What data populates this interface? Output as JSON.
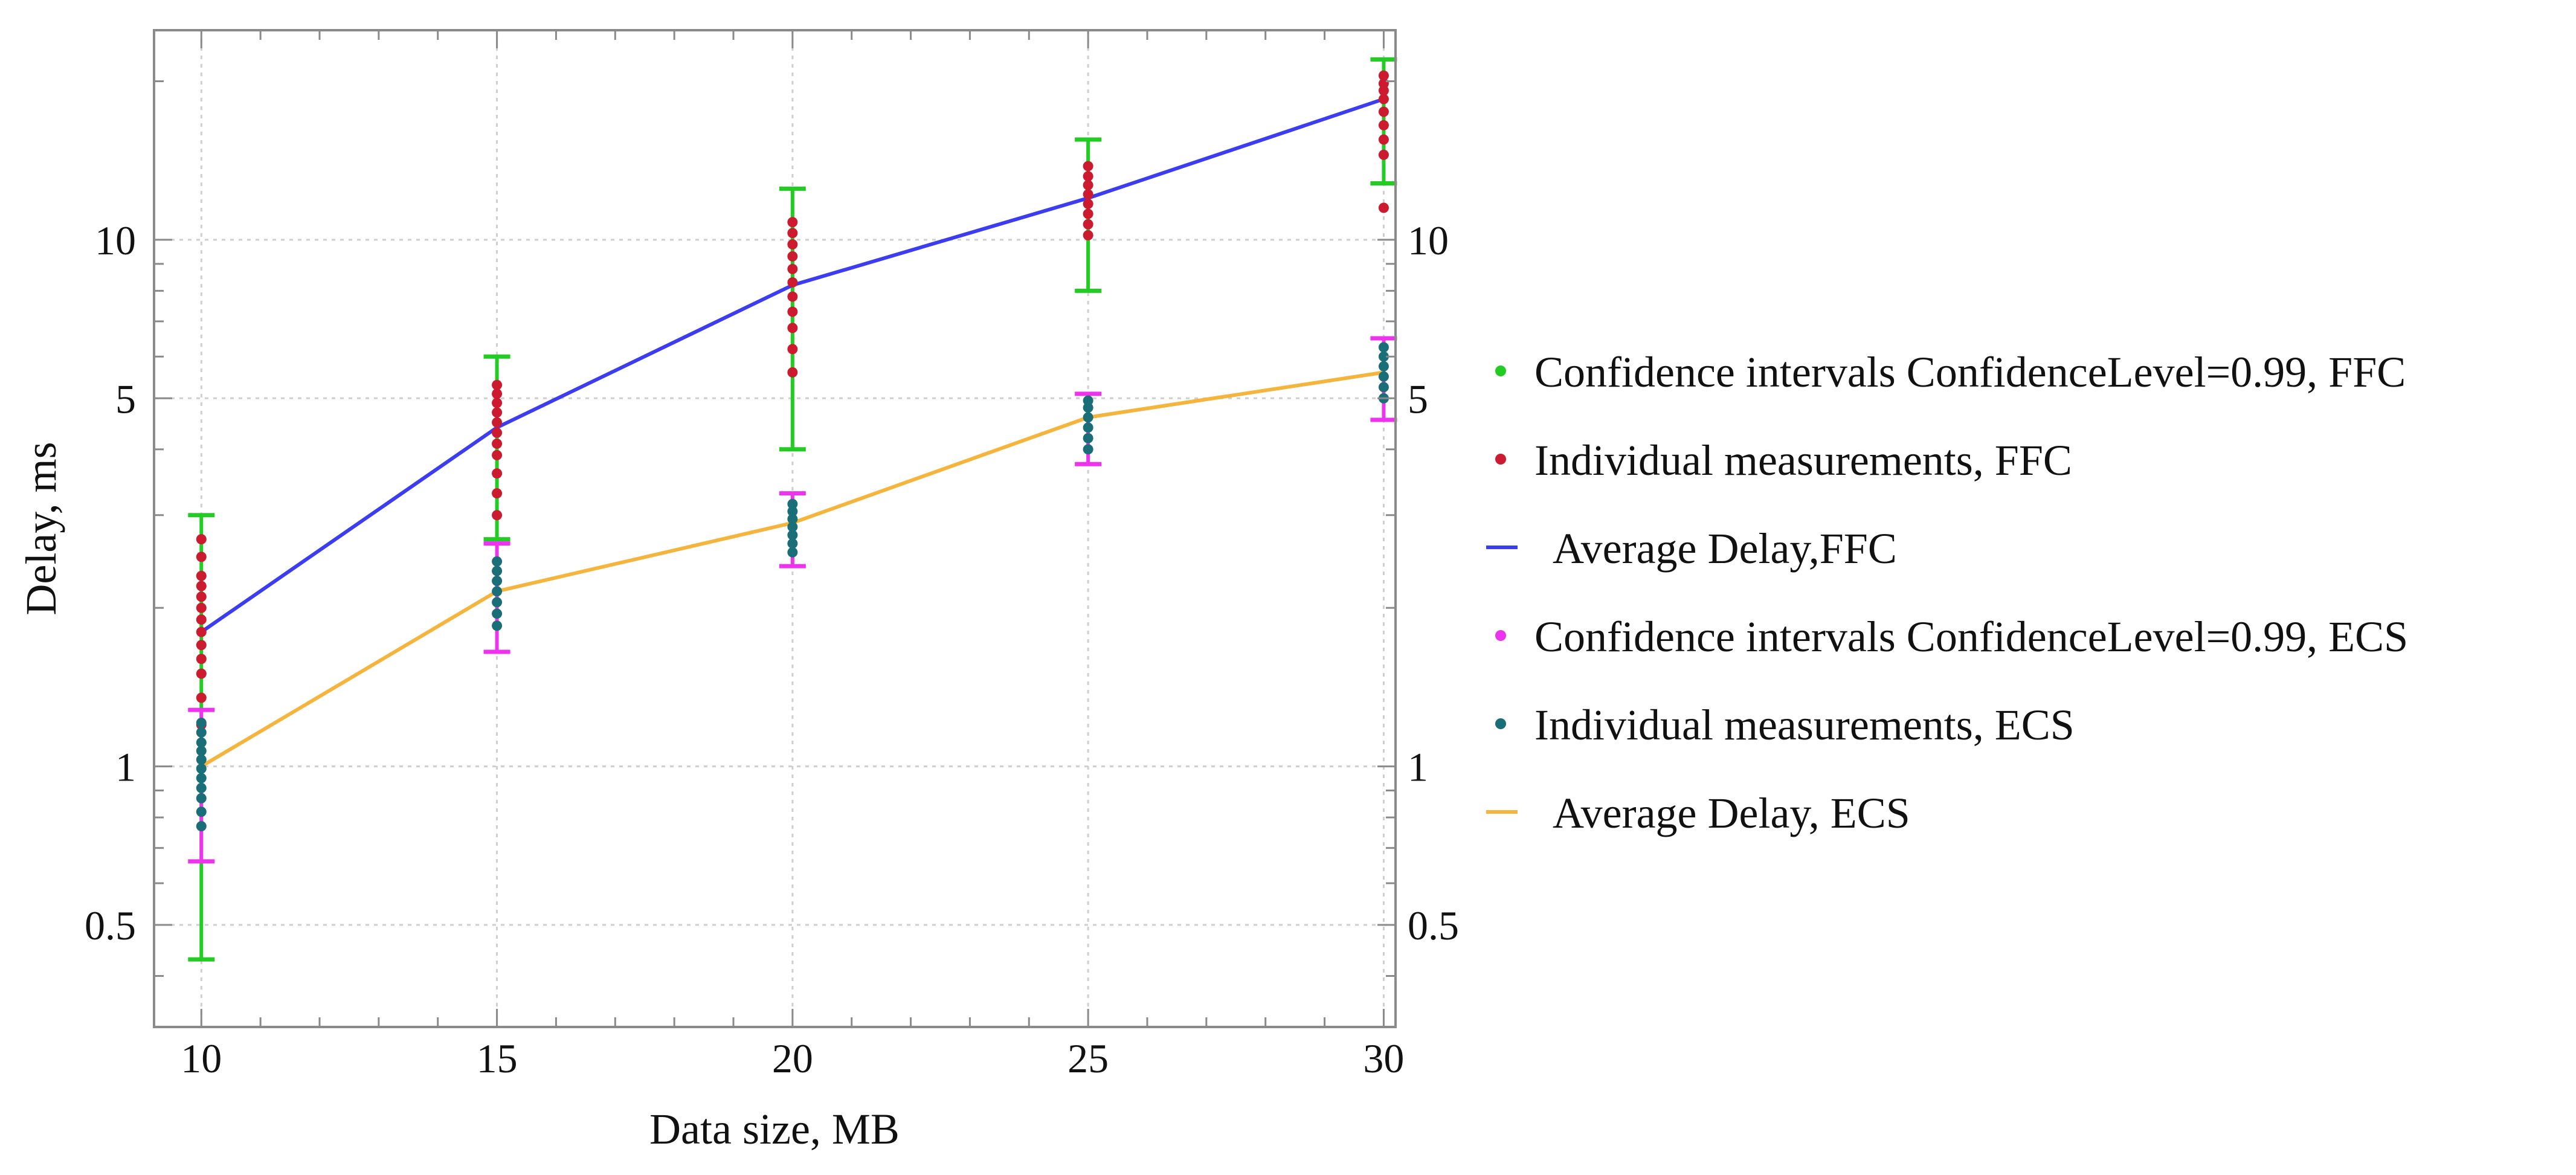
{
  "chart_data": {
    "type": "line",
    "xlabel": "Data size, MB",
    "ylabel": "Delay, ms",
    "yscale": "log",
    "xlim": [
      9.2,
      30.2
    ],
    "ylim": [
      0.32,
      25
    ],
    "x_ticks": [
      10,
      15,
      20,
      25,
      30
    ],
    "x_tick_labels": [
      "10",
      "15",
      "20",
      "25",
      "30"
    ],
    "y_ticks": [
      0.5,
      1,
      5,
      10
    ],
    "y_tick_labels": [
      "0.5",
      "1",
      "5",
      "10"
    ],
    "grid": true,
    "legend_position": "right",
    "colors": {
      "ci_ffc": "#22cc22",
      "meas_ffc": "#cc1a2e",
      "avg_ffc": "#3c3cf0",
      "ci_ecs": "#ee33ee",
      "meas_ecs": "#1a6e78",
      "avg_ecs": "#f5b43c",
      "grid": "#cfcfcf",
      "frame": "#8a8a8a"
    },
    "x": [
      10,
      15,
      20,
      25,
      30
    ],
    "series": [
      {
        "name": "Average Delay,FFC",
        "kind": "line",
        "color": "avg_ffc",
        "values": [
          1.8,
          4.4,
          8.2,
          12.0,
          18.5
        ]
      },
      {
        "name": "Average Delay, ECS",
        "kind": "line",
        "color": "avg_ecs",
        "values": [
          1.0,
          2.15,
          2.9,
          4.6,
          5.6
        ]
      }
    ],
    "confidence_intervals": [
      {
        "name": "Confidence intervals ConfidenceLevel=0.99, FFC",
        "color": "ci_ffc",
        "lower": [
          0.43,
          2.7,
          4.0,
          8.0,
          12.8
        ],
        "upper": [
          3.0,
          6.0,
          12.5,
          15.5,
          22.0
        ]
      },
      {
        "name": "Confidence intervals ConfidenceLevel=0.99, ECS",
        "color": "ci_ecs",
        "lower": [
          0.66,
          1.65,
          2.4,
          3.75,
          4.55
        ],
        "upper": [
          1.28,
          2.65,
          3.3,
          5.1,
          6.5
        ]
      }
    ],
    "measurements": [
      {
        "name": "Individual measurements, FFC",
        "color": "meas_ffc",
        "points": [
          [
            10,
            1.2
          ],
          [
            10,
            1.35
          ],
          [
            10,
            1.5
          ],
          [
            10,
            1.6
          ],
          [
            10,
            1.7
          ],
          [
            10,
            1.8
          ],
          [
            10,
            1.9
          ],
          [
            10,
            2.0
          ],
          [
            10,
            2.1
          ],
          [
            10,
            2.2
          ],
          [
            10,
            2.3
          ],
          [
            10,
            2.5
          ],
          [
            10,
            2.7
          ],
          [
            15,
            3.0
          ],
          [
            15,
            3.3
          ],
          [
            15,
            3.6
          ],
          [
            15,
            3.9
          ],
          [
            15,
            4.1
          ],
          [
            15,
            4.3
          ],
          [
            15,
            4.5
          ],
          [
            15,
            4.7
          ],
          [
            15,
            4.9
          ],
          [
            15,
            5.1
          ],
          [
            15,
            5.3
          ],
          [
            20,
            5.6
          ],
          [
            20,
            6.2
          ],
          [
            20,
            6.8
          ],
          [
            20,
            7.3
          ],
          [
            20,
            7.8
          ],
          [
            20,
            8.3
          ],
          [
            20,
            8.8
          ],
          [
            20,
            9.3
          ],
          [
            20,
            9.8
          ],
          [
            20,
            10.3
          ],
          [
            20,
            10.8
          ],
          [
            25,
            10.2
          ],
          [
            25,
            10.7
          ],
          [
            25,
            11.2
          ],
          [
            25,
            11.7
          ],
          [
            25,
            12.2
          ],
          [
            25,
            12.7
          ],
          [
            25,
            13.2
          ],
          [
            25,
            13.8
          ],
          [
            30,
            11.5
          ],
          [
            30,
            14.5
          ],
          [
            30,
            15.5
          ],
          [
            30,
            16.5
          ],
          [
            30,
            17.5
          ],
          [
            30,
            18.5
          ],
          [
            30,
            19.2
          ],
          [
            30,
            19.8
          ],
          [
            30,
            20.5
          ]
        ]
      },
      {
        "name": "Individual measurements, ECS",
        "color": "meas_ecs",
        "points": [
          [
            10,
            0.77
          ],
          [
            10,
            0.82
          ],
          [
            10,
            0.87
          ],
          [
            10,
            0.91
          ],
          [
            10,
            0.95
          ],
          [
            10,
            0.99
          ],
          [
            10,
            1.03
          ],
          [
            10,
            1.07
          ],
          [
            10,
            1.11
          ],
          [
            10,
            1.16
          ],
          [
            10,
            1.21
          ],
          [
            15,
            1.85
          ],
          [
            15,
            1.95
          ],
          [
            15,
            2.05
          ],
          [
            15,
            2.15
          ],
          [
            15,
            2.25
          ],
          [
            15,
            2.35
          ],
          [
            15,
            2.45
          ],
          [
            20,
            2.55
          ],
          [
            20,
            2.65
          ],
          [
            20,
            2.75
          ],
          [
            20,
            2.85
          ],
          [
            20,
            2.95
          ],
          [
            20,
            3.05
          ],
          [
            20,
            3.15
          ],
          [
            25,
            4.0
          ],
          [
            25,
            4.2
          ],
          [
            25,
            4.4
          ],
          [
            25,
            4.6
          ],
          [
            25,
            4.8
          ],
          [
            25,
            4.95
          ],
          [
            30,
            5.0
          ],
          [
            30,
            5.25
          ],
          [
            30,
            5.5
          ],
          [
            30,
            5.75
          ],
          [
            30,
            6.0
          ],
          [
            30,
            6.25
          ]
        ]
      }
    ],
    "legend": [
      {
        "label": "Confidence intervals ConfidenceLevel=0.99, FFC",
        "marker": "dot",
        "color": "ci_ffc"
      },
      {
        "label": "Individual measurements, FFC",
        "marker": "dot",
        "color": "meas_ffc"
      },
      {
        "label": "Average Delay,FFC",
        "marker": "line",
        "color": "avg_ffc"
      },
      {
        "label": "Confidence intervals ConfidenceLevel=0.99, ECS",
        "marker": "dot",
        "color": "ci_ecs"
      },
      {
        "label": "Individual measurements, ECS",
        "marker": "dot",
        "color": "meas_ecs"
      },
      {
        "label": "Average Delay, ECS",
        "marker": "line",
        "color": "avg_ecs"
      }
    ]
  }
}
